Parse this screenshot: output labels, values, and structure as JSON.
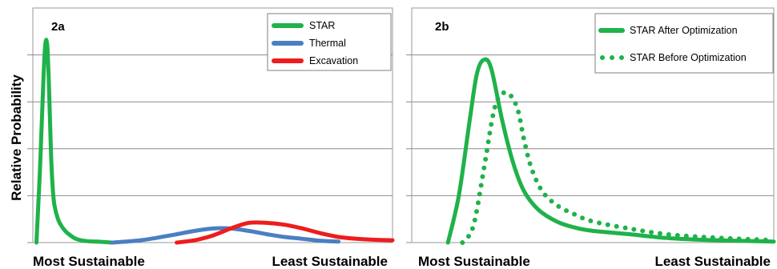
{
  "y_axis_label": "Relative Probability",
  "chart_data": [
    {
      "type": "line",
      "panel_label": "2a",
      "xlabel_left": "Most Sustainable",
      "xlabel_right": "Least Sustainable",
      "ylim": [
        0,
        5
      ],
      "grid": true,
      "legend_position": "top-right",
      "series": [
        {
          "name": "STAR",
          "color": "#1fb24a",
          "style": "solid",
          "x": [
            0.01,
            0.02,
            0.03,
            0.035,
            0.04,
            0.045,
            0.05,
            0.055,
            0.06,
            0.07,
            0.08,
            0.09,
            0.1,
            0.12,
            0.15,
            0.18,
            0.22
          ],
          "y": [
            0,
            1.6,
            3.6,
            4.25,
            4.2,
            3.3,
            2.0,
            1.2,
            0.8,
            0.5,
            0.35,
            0.25,
            0.18,
            0.08,
            0.03,
            0.02,
            0.0
          ]
        },
        {
          "name": "Thermal",
          "color": "#4a7fc1",
          "style": "solid",
          "x": [
            0.22,
            0.3,
            0.38,
            0.45,
            0.5,
            0.55,
            0.6,
            0.65,
            0.7,
            0.75,
            0.8,
            0.85
          ],
          "y": [
            0.0,
            0.05,
            0.15,
            0.25,
            0.3,
            0.3,
            0.25,
            0.18,
            0.12,
            0.08,
            0.04,
            0.02
          ]
        },
        {
          "name": "Excavation",
          "color": "#ee1c1c",
          "style": "solid",
          "x": [
            0.4,
            0.45,
            0.5,
            0.55,
            0.6,
            0.65,
            0.7,
            0.75,
            0.8,
            0.85,
            0.9,
            0.95,
            1.0
          ],
          "y": [
            0.0,
            0.05,
            0.15,
            0.3,
            0.42,
            0.42,
            0.38,
            0.3,
            0.2,
            0.12,
            0.08,
            0.06,
            0.05
          ]
        }
      ]
    },
    {
      "type": "line",
      "panel_label": "2b",
      "xlabel_left": "Most Sustainable",
      "xlabel_right": "Least Sustainable",
      "ylim": [
        0,
        5
      ],
      "grid": true,
      "legend_position": "top-right",
      "series": [
        {
          "name": "STAR After Optimization",
          "color": "#1fb24a",
          "style": "solid",
          "x": [
            0.1,
            0.13,
            0.16,
            0.18,
            0.2,
            0.22,
            0.25,
            0.28,
            0.31,
            0.35,
            0.4,
            0.45,
            0.5,
            0.6,
            0.7,
            0.8,
            0.9,
            1.0
          ],
          "y": [
            0,
            1.0,
            2.6,
            3.6,
            3.9,
            3.7,
            2.6,
            1.7,
            1.1,
            0.7,
            0.45,
            0.32,
            0.25,
            0.18,
            0.1,
            0.06,
            0.04,
            0.02
          ]
        },
        {
          "name": "STAR Before Optimization",
          "color": "#1fb24a",
          "style": "dotted",
          "x": [
            0.14,
            0.17,
            0.2,
            0.23,
            0.26,
            0.29,
            0.31,
            0.33,
            0.36,
            0.4,
            0.45,
            0.5,
            0.6,
            0.7,
            0.8,
            0.9,
            1.0
          ],
          "y": [
            0,
            0.35,
            1.6,
            2.9,
            3.2,
            2.9,
            2.2,
            1.6,
            1.1,
            0.8,
            0.6,
            0.45,
            0.3,
            0.18,
            0.12,
            0.08,
            0.05
          ]
        }
      ]
    }
  ]
}
